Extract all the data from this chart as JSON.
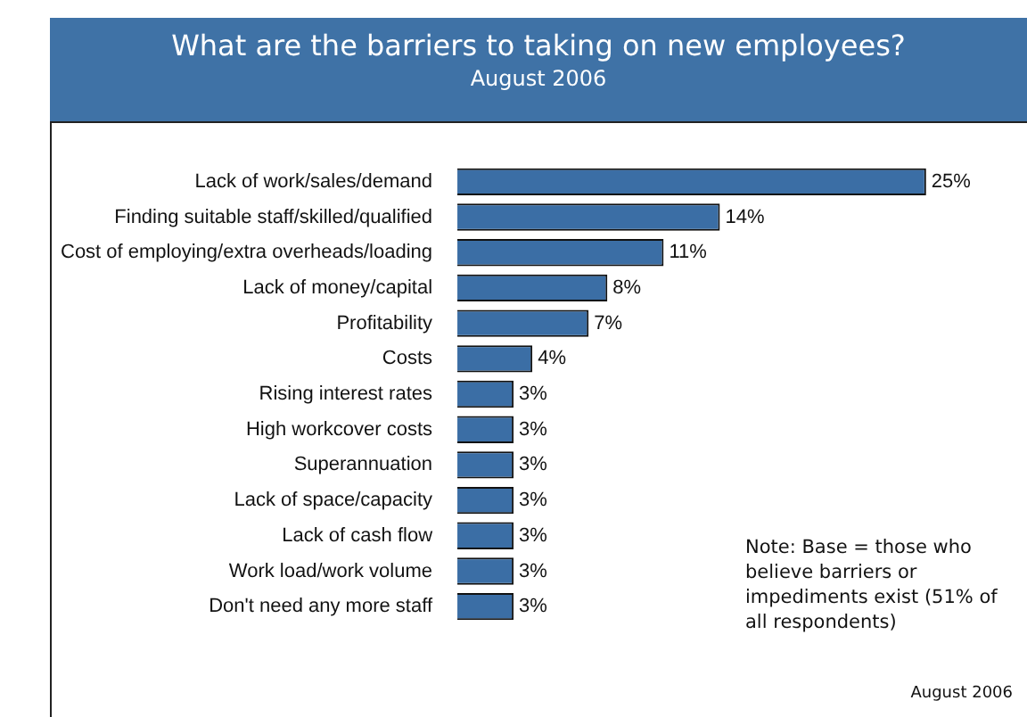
{
  "chart_data": {
    "type": "bar",
    "orientation": "horizontal",
    "title": "What are the barriers to taking on new employees?",
    "subtitle": "August 2006",
    "categories": [
      "Lack of work/sales/demand",
      "Finding suitable staff/skilled/qualified",
      "Cost of employing/extra overheads/loading",
      "Lack of money/capital",
      "Profitability",
      "Costs",
      "Rising interest rates",
      "High workcover costs",
      "Superannuation",
      "Lack of space/capacity",
      "Lack of cash flow",
      "Work load/work volume",
      "Don't need any more staff"
    ],
    "values": [
      25,
      14,
      11,
      8,
      7,
      4,
      3,
      3,
      3,
      3,
      3,
      3,
      3
    ],
    "value_labels": [
      "25%",
      "14%",
      "11%",
      "8%",
      "7%",
      "4%",
      "3%",
      "3%",
      "3%",
      "3%",
      "3%",
      "3%",
      "3%"
    ],
    "color": "#3b6ea5",
    "annotations": [
      "Note: Base = those who believe barriers or impediments exist (51% of all respondents)",
      "August 2006"
    ],
    "legend": false
  }
}
